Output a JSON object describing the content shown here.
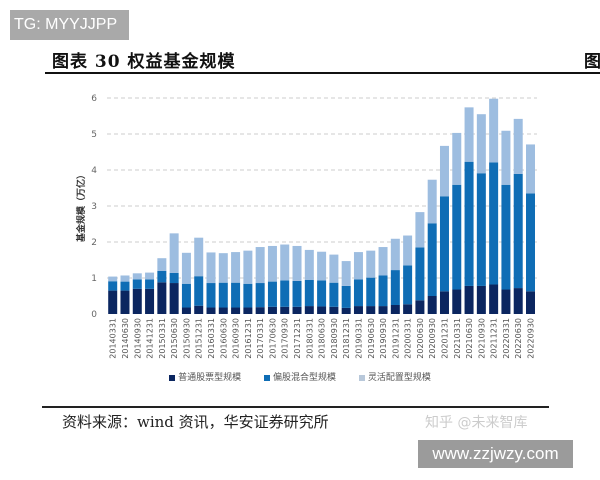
{
  "watermark_tg": "TG: MYYJJPP",
  "title": "图表 30 权益基金规模",
  "title_cut": "图",
  "source": "资料来源：wind 资讯，华安证券研究所",
  "watermark_zhihu": "知乎 @未来智库",
  "site": "www.zzjwzy.com",
  "chart_data": {
    "type": "bar",
    "stacked": true,
    "title": "",
    "xlabel": "",
    "ylabel": "基金规模（万亿）",
    "ylim": [
      0,
      6
    ],
    "yticks": [
      "0",
      "1",
      "2",
      "3",
      "4",
      "5",
      "6"
    ],
    "grid": "horizontal-dashed",
    "legend_position": "bottom",
    "categories": [
      "20140331",
      "20140630",
      "20140930",
      "20141231",
      "20150331",
      "20150630",
      "20150930",
      "20151231",
      "20160331",
      "20160630",
      "20160930",
      "20161231",
      "20170331",
      "20170630",
      "20170930",
      "20171231",
      "20180331",
      "20180630",
      "20180930",
      "20181231",
      "20190331",
      "20190630",
      "20190930",
      "20191231",
      "20200331",
      "20200630",
      "20200930",
      "20201231",
      "20210331",
      "20210630",
      "20210930",
      "20211231",
      "20220331",
      "20220630",
      "20220930"
    ],
    "series": [
      {
        "name": "普通股票型规模",
        "color": "#0b2660",
        "values": [
          0.65,
          0.65,
          0.7,
          0.7,
          0.88,
          0.86,
          0.18,
          0.23,
          0.18,
          0.18,
          0.18,
          0.18,
          0.19,
          0.2,
          0.2,
          0.2,
          0.22,
          0.21,
          0.2,
          0.17,
          0.22,
          0.22,
          0.22,
          0.25,
          0.27,
          0.38,
          0.5,
          0.63,
          0.68,
          0.78,
          0.78,
          0.82,
          0.68,
          0.72,
          0.63
        ]
      },
      {
        "name": "偏股混合型规模",
        "color": "#0f6db5",
        "values": [
          0.26,
          0.25,
          0.26,
          0.26,
          0.32,
          0.28,
          0.66,
          0.82,
          0.68,
          0.69,
          0.69,
          0.66,
          0.67,
          0.7,
          0.73,
          0.72,
          0.73,
          0.72,
          0.67,
          0.61,
          0.74,
          0.79,
          0.85,
          0.97,
          1.08,
          1.47,
          2.02,
          2.64,
          2.91,
          3.45,
          3.13,
          3.39,
          2.91,
          3.17,
          2.72
        ]
      },
      {
        "name": "灵活配置型规模",
        "color": "#9dbde0",
        "values": [
          0.13,
          0.17,
          0.17,
          0.19,
          0.35,
          1.1,
          0.86,
          1.07,
          0.85,
          0.82,
          0.85,
          0.92,
          1.0,
          0.99,
          1.0,
          0.97,
          0.83,
          0.8,
          0.78,
          0.69,
          0.76,
          0.75,
          0.79,
          0.87,
          0.83,
          0.98,
          1.21,
          1.4,
          1.44,
          1.51,
          1.64,
          1.77,
          1.5,
          1.53,
          1.36
        ]
      }
    ]
  }
}
